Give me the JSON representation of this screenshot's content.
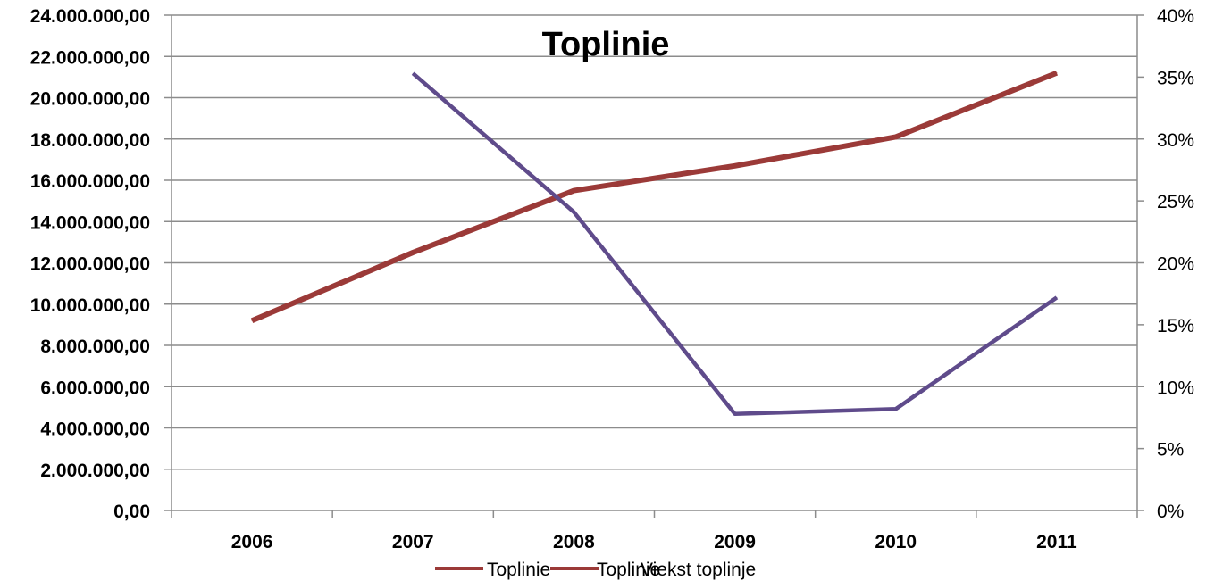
{
  "chart_data": {
    "type": "line",
    "title": "Toplinie",
    "categories": [
      "2006",
      "2007",
      "2008",
      "2009",
      "2010",
      "2011"
    ],
    "y_left": {
      "min": 0,
      "max": 24000000,
      "step": 2000000,
      "tick_labels": [
        "0,00",
        "2.000.000,00",
        "4.000.000,00",
        "6.000.000,00",
        "8.000.000,00",
        "10.000.000,00",
        "12.000.000,00",
        "14.000.000,00",
        "16.000.000,00",
        "18.000.000,00",
        "20.000.000,00",
        "22.000.000,00",
        "24.000.000,00"
      ]
    },
    "y_right": {
      "min": 0,
      "max": 40,
      "step": 5,
      "tick_labels": [
        "0%",
        "5%",
        "10%",
        "15%",
        "20%",
        "25%",
        "30%",
        "35%",
        "40%"
      ]
    },
    "series": [
      {
        "name": "Toplinie",
        "axis": "left",
        "color": "#9B3A38",
        "values": [
          9200000,
          12500000,
          15500000,
          16700000,
          18100000,
          21200000
        ]
      },
      {
        "name": "Toplinie",
        "axis": "right",
        "color": "#5F4B8B",
        "values": [
          null,
          35.3,
          24.1,
          7.8,
          8.2,
          17.2
        ]
      }
    ],
    "legend_overlap_text": "Viekst toplinje",
    "grid": true,
    "legend": "bottom"
  }
}
